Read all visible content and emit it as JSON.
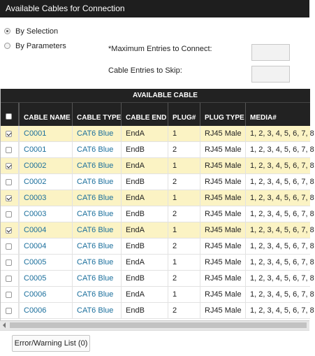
{
  "header": {
    "title": "Available Cables for Connection"
  },
  "options": {
    "radios": [
      {
        "label": "By Selection",
        "checked": true
      },
      {
        "label": "By Parameters",
        "checked": false
      }
    ],
    "fields": [
      {
        "label": "*Maximum Entries to Connect:"
      },
      {
        "label": "Cable Entries to Skip:"
      }
    ]
  },
  "table": {
    "group_header": "AVAILABLE CABLE",
    "columns": [
      "CABLE NAME",
      "CABLE TYPE",
      "CABLE END",
      "PLUG#",
      "PLUG TYPE",
      "MEDIA#"
    ],
    "rows": [
      {
        "checked": true,
        "cells": [
          "C0001",
          "CAT6 Blue",
          "EndA",
          "1",
          "RJ45 Male",
          "1, 2, 3, 4, 5, 6, 7, 8"
        ]
      },
      {
        "checked": false,
        "cells": [
          "C0001",
          "CAT6 Blue",
          "EndB",
          "2",
          "RJ45 Male",
          "1, 2, 3, 4, 5, 6, 7, 8"
        ]
      },
      {
        "checked": true,
        "cells": [
          "C0002",
          "CAT6 Blue",
          "EndA",
          "1",
          "RJ45 Male",
          "1, 2, 3, 4, 5, 6, 7, 8"
        ]
      },
      {
        "checked": false,
        "cells": [
          "C0002",
          "CAT6 Blue",
          "EndB",
          "2",
          "RJ45 Male",
          "1, 2, 3, 4, 5, 6, 7, 8"
        ]
      },
      {
        "checked": true,
        "cells": [
          "C0003",
          "CAT6 Blue",
          "EndA",
          "1",
          "RJ45 Male",
          "1, 2, 3, 4, 5, 6, 7, 8"
        ]
      },
      {
        "checked": false,
        "cells": [
          "C0003",
          "CAT6 Blue",
          "EndB",
          "2",
          "RJ45 Male",
          "1, 2, 3, 4, 5, 6, 7, 8"
        ]
      },
      {
        "checked": true,
        "cells": [
          "C0004",
          "CAT6 Blue",
          "EndA",
          "1",
          "RJ45 Male",
          "1, 2, 3, 4, 5, 6, 7, 8"
        ]
      },
      {
        "checked": false,
        "cells": [
          "C0004",
          "CAT6 Blue",
          "EndB",
          "2",
          "RJ45 Male",
          "1, 2, 3, 4, 5, 6, 7, 8"
        ]
      },
      {
        "checked": false,
        "cells": [
          "C0005",
          "CAT6 Blue",
          "EndA",
          "1",
          "RJ45 Male",
          "1, 2, 3, 4, 5, 6, 7, 8"
        ]
      },
      {
        "checked": false,
        "cells": [
          "C0005",
          "CAT6 Blue",
          "EndB",
          "2",
          "RJ45 Male",
          "1, 2, 3, 4, 5, 6, 7, 8"
        ]
      },
      {
        "checked": false,
        "cells": [
          "C0006",
          "CAT6 Blue",
          "EndA",
          "1",
          "RJ45 Male",
          "1, 2, 3, 4, 5, 6, 7, 8"
        ]
      },
      {
        "checked": false,
        "cells": [
          "C0006",
          "CAT6 Blue",
          "EndB",
          "2",
          "RJ45 Male",
          "1, 2, 3, 4, 5, 6, 7, 8"
        ]
      }
    ]
  },
  "footer": {
    "button": "Error/Warning List (0)"
  }
}
